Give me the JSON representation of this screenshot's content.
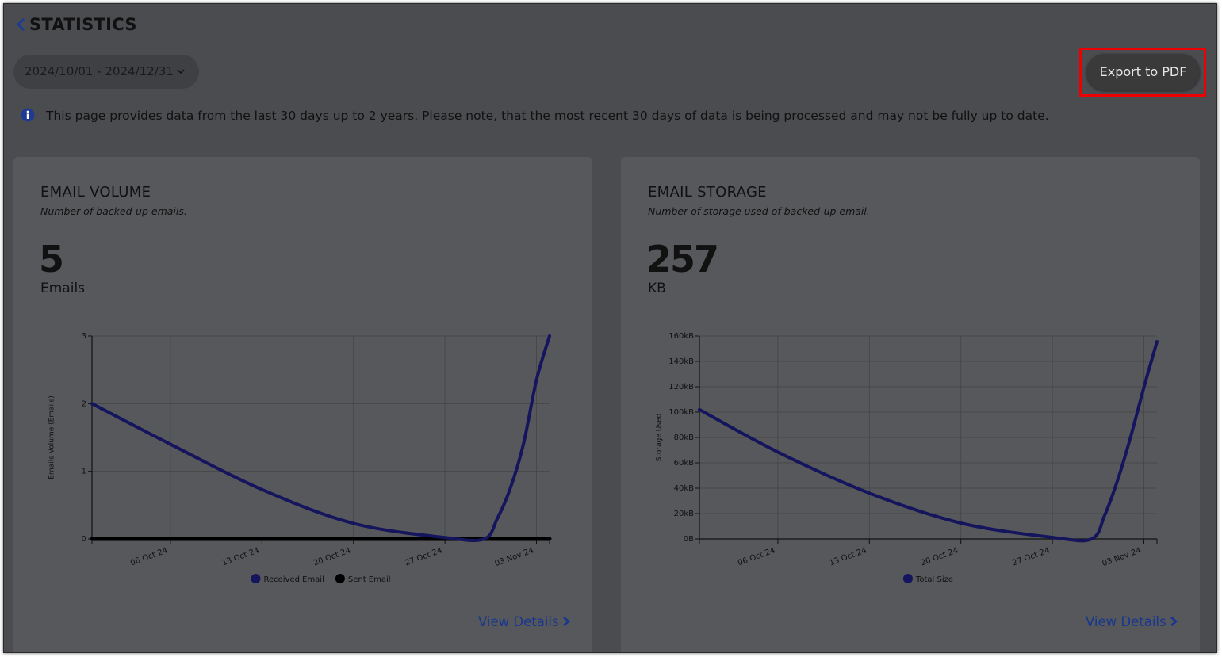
{
  "header": {
    "title": "STATISTICS",
    "date_range": "2024/10/01 - 2024/12/31",
    "export_button": "Export to PDF",
    "notice": "This page provides data from the last 30 days up to 2 years. Please note, that the most recent 30 days of data is being processed and may not be fully up to date."
  },
  "chart_data": [
    {
      "type": "line",
      "title": "EMAIL VOLUME",
      "subtitle": "Number of backed-up emails.",
      "total": 5,
      "total_unit": "Emails",
      "link": "View Details",
      "y_label": "Emails Volume (Emails)",
      "x": [
        "2024-09-30",
        "2024-10-06",
        "2024-10-13",
        "2024-10-20",
        "2024-10-27",
        "2024-10-30",
        "2024-10-31",
        "2024-11-01",
        "2024-11-02",
        "2024-11-03",
        "2024-11-04"
      ],
      "series": [
        {
          "name": "Received Email",
          "color": "#15155e",
          "values": [
            2,
            1.4,
            0.73,
            0.23,
            0.02,
            0,
            0.3,
            0.75,
            1.4,
            2.35,
            3
          ]
        },
        {
          "name": "Sent Email",
          "color": "#000000",
          "values": [
            0,
            0,
            0,
            0,
            0,
            0,
            0,
            0,
            0,
            0,
            0
          ]
        }
      ],
      "xlim": [
        "2024-09-30",
        "2024-11-04"
      ],
      "xticks": [
        {
          "value": "2024-10-06",
          "label": "06 Oct 24"
        },
        {
          "value": "2024-10-13",
          "label": "13 Oct 24"
        },
        {
          "value": "2024-10-20",
          "label": "20 Oct 24"
        },
        {
          "value": "2024-10-27",
          "label": "27 Oct 24"
        },
        {
          "value": "2024-11-03",
          "label": "03 Nov 24"
        }
      ],
      "ylim": [
        0,
        3
      ],
      "yticks": [
        0,
        1,
        2,
        3
      ],
      "grid": true,
      "legend": "bottom"
    },
    {
      "type": "line",
      "title": "EMAIL STORAGE",
      "subtitle": "Number of storage used of backed-up email.",
      "total": 257,
      "total_unit": "KB",
      "link": "View Details",
      "y_label": "Storage Used",
      "x": [
        "2024-09-30",
        "2024-10-06",
        "2024-10-13",
        "2024-10-20",
        "2024-10-27",
        "2024-10-30",
        "2024-10-31",
        "2024-11-01",
        "2024-11-02",
        "2024-11-03",
        "2024-11-04"
      ],
      "series": [
        {
          "name": "Total Size",
          "color": "#15155e",
          "values": [
            102000,
            68500,
            36100,
            12500,
            1200,
            0,
            18700,
            46700,
            81000,
            119500,
            155600
          ]
        }
      ],
      "xlim": [
        "2024-09-30",
        "2024-11-04"
      ],
      "xticks": [
        {
          "value": "2024-10-06",
          "label": "06 Oct 24"
        },
        {
          "value": "2024-10-13",
          "label": "13 Oct 24"
        },
        {
          "value": "2024-10-20",
          "label": "20 Oct 24"
        },
        {
          "value": "2024-10-27",
          "label": "27 Oct 24"
        },
        {
          "value": "2024-11-03",
          "label": "03 Nov 24"
        }
      ],
      "ylim": [
        0,
        160000
      ],
      "yticks": [
        {
          "value": 0,
          "label": "0B"
        },
        {
          "value": 20000,
          "label": "20kB"
        },
        {
          "value": 40000,
          "label": "40kB"
        },
        {
          "value": 60000,
          "label": "60kB"
        },
        {
          "value": 80000,
          "label": "80kB"
        },
        {
          "value": 100000,
          "label": "100kB"
        },
        {
          "value": 120000,
          "label": "120kB"
        },
        {
          "value": 140000,
          "label": "140kB"
        },
        {
          "value": 160000,
          "label": "160kB"
        }
      ],
      "grid": true,
      "legend": "bottom"
    }
  ]
}
